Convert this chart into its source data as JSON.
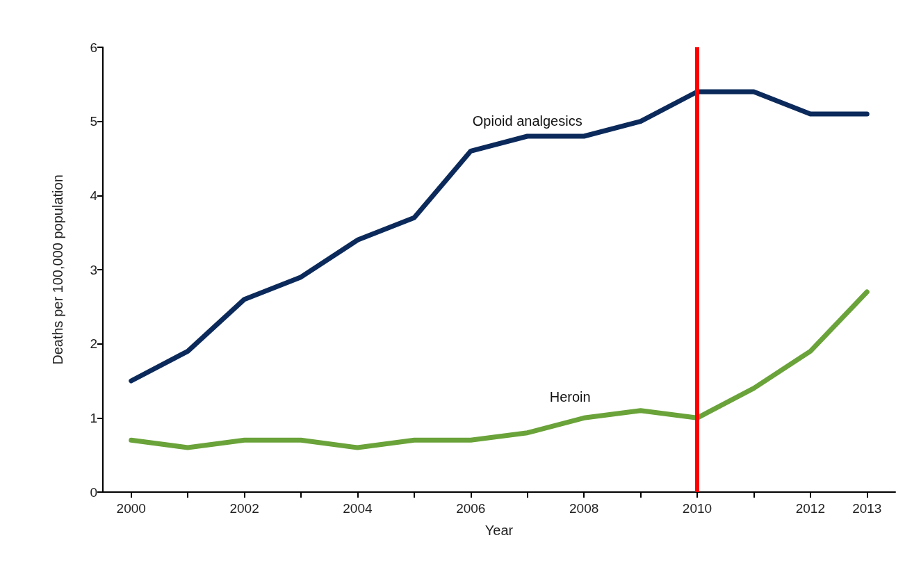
{
  "chart_data": {
    "type": "line",
    "xlabel": "Year",
    "ylabel": "Deaths per 100,000 population",
    "x": [
      2000,
      2001,
      2002,
      2003,
      2004,
      2005,
      2006,
      2007,
      2008,
      2009,
      2010,
      2011,
      2012,
      2013
    ],
    "series": [
      {
        "name": "Opioid analgesics",
        "color": "#0b2a5b",
        "values": [
          1.5,
          1.9,
          2.6,
          2.9,
          3.4,
          3.7,
          4.6,
          4.8,
          4.8,
          5.0,
          5.4,
          5.4,
          5.1,
          5.1
        ]
      },
      {
        "name": "Heroin",
        "color": "#6aa339",
        "values": [
          0.7,
          0.6,
          0.7,
          0.7,
          0.6,
          0.7,
          0.7,
          0.8,
          1.0,
          1.1,
          1.0,
          1.4,
          1.9,
          2.7
        ]
      }
    ],
    "ref_lines": [
      {
        "axis": "x",
        "value": 2010,
        "color": "#ff0000"
      }
    ],
    "xlim": [
      1999.5,
      2013.5
    ],
    "xticks": [
      2000,
      {
        "value": 2001,
        "label": null
      },
      2002,
      {
        "value": 2003,
        "label": null
      },
      2004,
      {
        "value": 2005,
        "label": null
      },
      2006,
      {
        "value": 2007,
        "label": null
      },
      2008,
      {
        "value": 2009,
        "label": null
      },
      2010,
      {
        "value": 2011,
        "label": null
      },
      2012,
      2013
    ],
    "ylim": [
      0,
      6
    ],
    "yticks": [
      0,
      1,
      2,
      3,
      4,
      5,
      6
    ],
    "grid": false,
    "legend": false,
    "marker": "none",
    "line_style": "solid"
  }
}
